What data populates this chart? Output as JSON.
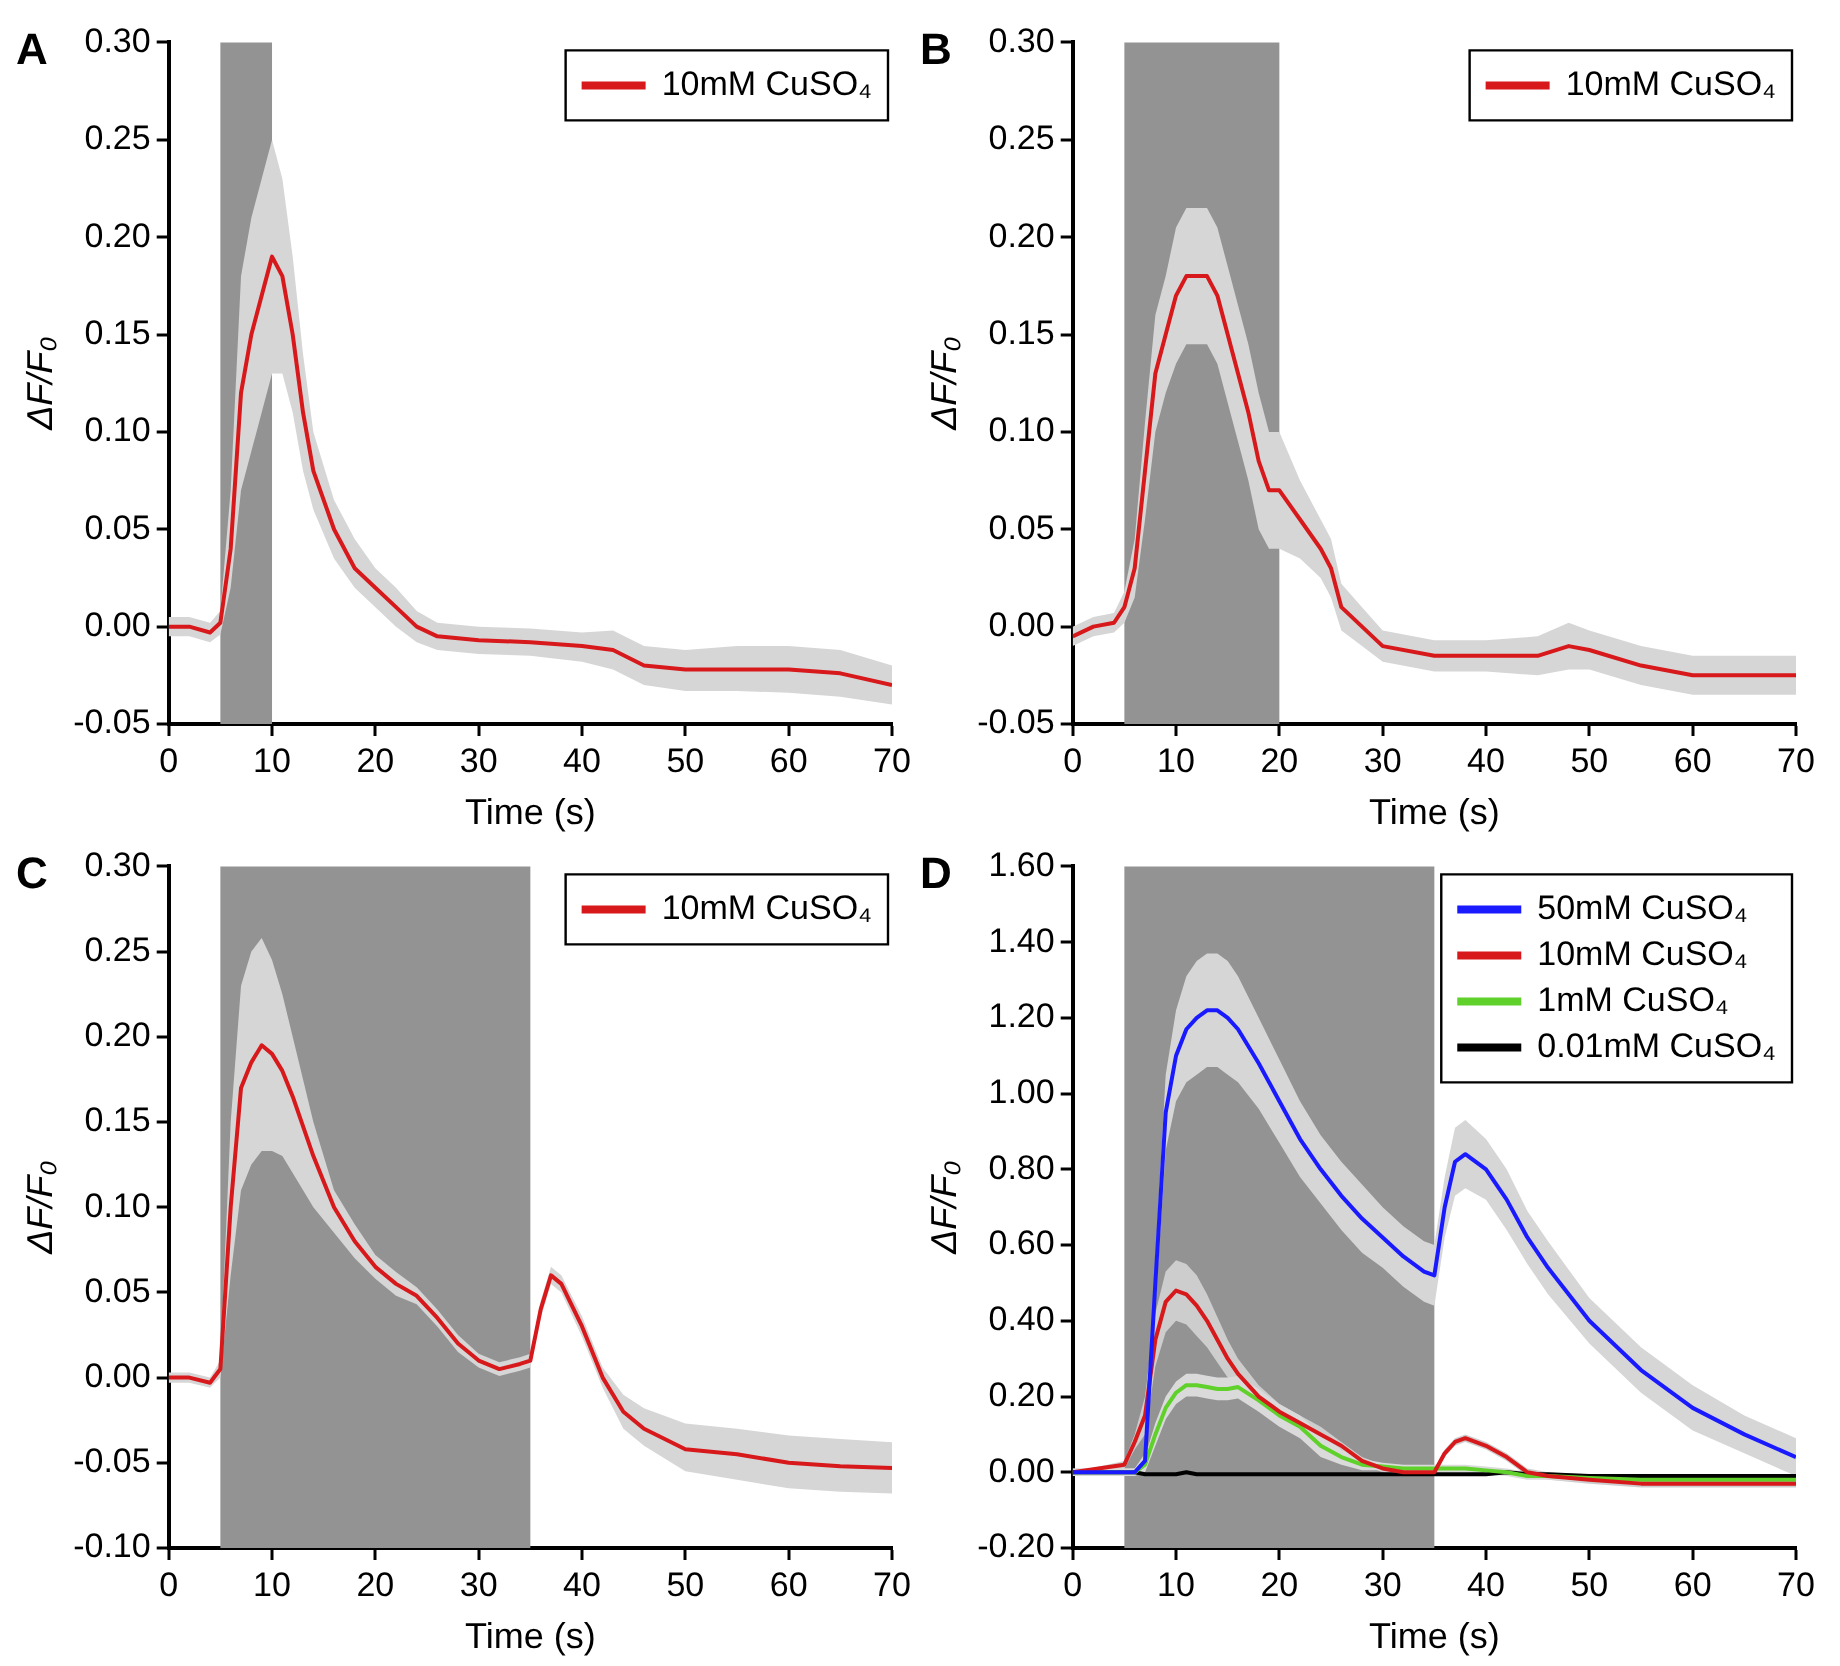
{
  "chart_data": [
    {
      "type": "line",
      "title": "A",
      "xlabel": "Time (s)",
      "ylabel": "ΔF/F₀",
      "legend": "top right",
      "x": [
        0,
        2,
        4,
        5,
        6,
        7,
        8,
        9,
        10,
        11,
        12,
        13,
        14,
        16,
        18,
        20,
        22,
        24,
        26,
        30,
        35,
        40,
        43,
        46,
        50,
        55,
        60,
        65,
        70
      ],
      "series": [
        {
          "name": "10mM CuSO₄",
          "color": "#d7191c",
          "values": [
            0,
            0,
            -0.003,
            0.002,
            0.04,
            0.12,
            0.15,
            0.17,
            0.19,
            0.18,
            0.15,
            0.11,
            0.08,
            0.05,
            0.03,
            0.02,
            0.01,
            0,
            -0.005,
            -0.007,
            -0.008,
            -0.01,
            -0.012,
            -0.02,
            -0.022,
            -0.022,
            -0.022,
            -0.024,
            -0.03
          ],
          "upper": [
            0.005,
            0.005,
            0.002,
            0.008,
            0.07,
            0.18,
            0.21,
            0.23,
            0.25,
            0.23,
            0.19,
            0.14,
            0.1,
            0.065,
            0.045,
            0.03,
            0.02,
            0.008,
            0.002,
            0.0,
            -0.001,
            -0.003,
            -0.002,
            -0.01,
            -0.012,
            -0.01,
            -0.01,
            -0.012,
            -0.02
          ],
          "lower": [
            -0.005,
            -0.005,
            -0.008,
            -0.004,
            0.02,
            0.07,
            0.09,
            0.11,
            0.13,
            0.13,
            0.11,
            0.08,
            0.06,
            0.035,
            0.02,
            0.01,
            0.0,
            -0.008,
            -0.012,
            -0.014,
            -0.015,
            -0.018,
            -0.022,
            -0.03,
            -0.033,
            -0.033,
            -0.034,
            -0.036,
            -0.04
          ]
        }
      ],
      "bands": [
        {
          "axis": "x",
          "from": 5,
          "to": 10,
          "color": "#939393"
        }
      ],
      "xlim": [
        0,
        70
      ],
      "xticks": [
        0,
        10,
        20,
        30,
        40,
        50,
        60,
        70
      ],
      "ylim": [
        -0.05,
        0.3
      ],
      "yticks": [
        {
          "value": -0.05,
          "label": "-0.05"
        },
        {
          "value": 0,
          "label": "0.00"
        },
        {
          "value": 0.05,
          "label": "0.05"
        },
        {
          "value": 0.1,
          "label": "0.10"
        },
        {
          "value": 0.15,
          "label": "0.15"
        },
        {
          "value": 0.2,
          "label": "0.20"
        },
        {
          "value": 0.25,
          "label": "0.25"
        },
        {
          "value": 0.3,
          "label": "0.30"
        }
      ]
    },
    {
      "type": "line",
      "title": "B",
      "xlabel": "Time (s)",
      "ylabel": "ΔF/F₀",
      "legend": "top right",
      "x": [
        0,
        2,
        4,
        5,
        6,
        7,
        8,
        9,
        10,
        11,
        12,
        13,
        14,
        15,
        16,
        17,
        18,
        19,
        20,
        22,
        24,
        25,
        26,
        28,
        30,
        35,
        40,
        45,
        48,
        50,
        55,
        60,
        65,
        70
      ],
      "series": [
        {
          "name": "10mM CuSO₄",
          "color": "#d7191c",
          "values": [
            -0.005,
            0,
            0.002,
            0.01,
            0.03,
            0.08,
            0.13,
            0.15,
            0.17,
            0.18,
            0.18,
            0.18,
            0.17,
            0.15,
            0.13,
            0.11,
            0.085,
            0.07,
            0.07,
            0.055,
            0.04,
            0.03,
            0.01,
            0.0,
            -0.01,
            -0.015,
            -0.015,
            -0.015,
            -0.01,
            -0.012,
            -0.02,
            -0.025,
            -0.025,
            -0.025
          ],
          "upper": [
            0.0,
            0.005,
            0.007,
            0.018,
            0.045,
            0.105,
            0.16,
            0.18,
            0.205,
            0.215,
            0.215,
            0.215,
            0.205,
            0.185,
            0.165,
            0.145,
            0.12,
            0.1,
            0.1,
            0.075,
            0.055,
            0.045,
            0.022,
            0.01,
            -0.002,
            -0.007,
            -0.007,
            -0.005,
            0.002,
            -0.002,
            -0.01,
            -0.015,
            -0.015,
            -0.015
          ],
          "lower": [
            -0.01,
            -0.005,
            -0.003,
            0.002,
            0.015,
            0.055,
            0.1,
            0.12,
            0.135,
            0.145,
            0.145,
            0.145,
            0.135,
            0.115,
            0.095,
            0.075,
            0.05,
            0.04,
            0.04,
            0.035,
            0.025,
            0.015,
            -0.002,
            -0.01,
            -0.018,
            -0.023,
            -0.023,
            -0.025,
            -0.022,
            -0.022,
            -0.03,
            -0.035,
            -0.035,
            -0.035
          ]
        }
      ],
      "bands": [
        {
          "axis": "x",
          "from": 5,
          "to": 20,
          "color": "#939393"
        }
      ],
      "xlim": [
        0,
        70
      ],
      "xticks": [
        0,
        10,
        20,
        30,
        40,
        50,
        60,
        70
      ],
      "ylim": [
        -0.05,
        0.3
      ],
      "yticks": [
        {
          "value": -0.05,
          "label": "-0.05"
        },
        {
          "value": 0,
          "label": "0.00"
        },
        {
          "value": 0.05,
          "label": "0.05"
        },
        {
          "value": 0.1,
          "label": "0.10"
        },
        {
          "value": 0.15,
          "label": "0.15"
        },
        {
          "value": 0.2,
          "label": "0.20"
        },
        {
          "value": 0.25,
          "label": "0.25"
        },
        {
          "value": 0.3,
          "label": "0.30"
        }
      ]
    },
    {
      "type": "line",
      "title": "C",
      "xlabel": "Time (s)",
      "ylabel": "ΔF/F₀",
      "legend": "top right",
      "x": [
        0,
        2,
        4,
        5,
        6,
        7,
        8,
        9,
        10,
        11,
        12,
        14,
        16,
        18,
        20,
        22,
        24,
        26,
        28,
        30,
        32,
        34,
        35,
        36,
        37,
        38,
        40,
        42,
        44,
        46,
        50,
        55,
        60,
        65,
        70
      ],
      "series": [
        {
          "name": "10mM CuSO₄",
          "color": "#d7191c",
          "values": [
            0,
            0,
            -0.003,
            0.005,
            0.1,
            0.17,
            0.185,
            0.195,
            0.19,
            0.18,
            0.165,
            0.13,
            0.1,
            0.08,
            0.065,
            0.055,
            0.048,
            0.035,
            0.02,
            0.01,
            0.005,
            0.008,
            0.01,
            0.04,
            0.06,
            0.055,
            0.03,
            0.0,
            -0.02,
            -0.03,
            -0.042,
            -0.045,
            -0.05,
            -0.052,
            -0.053
          ],
          "upper": [
            0.003,
            0.003,
            0.0,
            0.01,
            0.15,
            0.23,
            0.25,
            0.258,
            0.245,
            0.225,
            0.2,
            0.15,
            0.11,
            0.09,
            0.072,
            0.062,
            0.053,
            0.04,
            0.025,
            0.014,
            0.009,
            0.012,
            0.014,
            0.045,
            0.065,
            0.06,
            0.036,
            0.006,
            -0.01,
            -0.018,
            -0.027,
            -0.03,
            -0.034,
            -0.036,
            -0.038
          ],
          "lower": [
            -0.003,
            -0.003,
            -0.006,
            0.0,
            0.06,
            0.11,
            0.125,
            0.133,
            0.133,
            0.13,
            0.12,
            0.1,
            0.085,
            0.07,
            0.058,
            0.048,
            0.043,
            0.03,
            0.015,
            0.006,
            0.001,
            0.004,
            0.006,
            0.035,
            0.055,
            0.05,
            0.024,
            -0.006,
            -0.03,
            -0.04,
            -0.055,
            -0.06,
            -0.065,
            -0.067,
            -0.068
          ]
        }
      ],
      "bands": [
        {
          "axis": "x",
          "from": 5,
          "to": 35,
          "color": "#939393"
        }
      ],
      "xlim": [
        0,
        70
      ],
      "xticks": [
        0,
        10,
        20,
        30,
        40,
        50,
        60,
        70
      ],
      "ylim": [
        -0.1,
        0.3
      ],
      "yticks": [
        {
          "value": -0.1,
          "label": "-0.10"
        },
        {
          "value": -0.05,
          "label": "-0.05"
        },
        {
          "value": 0,
          "label": "0.00"
        },
        {
          "value": 0.05,
          "label": "0.05"
        },
        {
          "value": 0.1,
          "label": "0.10"
        },
        {
          "value": 0.15,
          "label": "0.15"
        },
        {
          "value": 0.2,
          "label": "0.20"
        },
        {
          "value": 0.25,
          "label": "0.25"
        },
        {
          "value": 0.3,
          "label": "0.30"
        }
      ]
    },
    {
      "type": "line",
      "title": "D",
      "xlabel": "Time (s)",
      "ylabel": "ΔF/F₀",
      "legend": "top right",
      "x": [
        0,
        5,
        6,
        7,
        8,
        9,
        10,
        11,
        12,
        13,
        14,
        15,
        16,
        18,
        20,
        22,
        24,
        26,
        28,
        30,
        32,
        34,
        35,
        36,
        37,
        38,
        40,
        42,
        44,
        46,
        50,
        55,
        60,
        65,
        70
      ],
      "series": [
        {
          "name": "50mM CuSO₄",
          "color": "#1a1aff",
          "values": [
            0,
            0,
            0,
            0.03,
            0.5,
            0.95,
            1.1,
            1.17,
            1.2,
            1.22,
            1.22,
            1.2,
            1.17,
            1.08,
            0.98,
            0.88,
            0.8,
            0.73,
            0.67,
            0.62,
            0.57,
            0.53,
            0.52,
            0.7,
            0.82,
            0.84,
            0.8,
            0.72,
            0.62,
            0.54,
            0.4,
            0.27,
            0.17,
            0.1,
            0.04
          ],
          "upper": [
            0.01,
            0.01,
            0.01,
            0.05,
            0.56,
            1.05,
            1.22,
            1.31,
            1.35,
            1.37,
            1.37,
            1.35,
            1.31,
            1.2,
            1.09,
            0.98,
            0.89,
            0.82,
            0.76,
            0.7,
            0.65,
            0.61,
            0.6,
            0.78,
            0.91,
            0.93,
            0.88,
            0.8,
            0.69,
            0.61,
            0.46,
            0.33,
            0.23,
            0.15,
            0.09
          ],
          "lower": [
            -0.01,
            -0.01,
            -0.01,
            0.01,
            0.44,
            0.85,
            0.98,
            1.03,
            1.05,
            1.07,
            1.07,
            1.05,
            1.03,
            0.96,
            0.87,
            0.78,
            0.71,
            0.64,
            0.58,
            0.54,
            0.49,
            0.45,
            0.44,
            0.62,
            0.73,
            0.75,
            0.72,
            0.64,
            0.55,
            0.47,
            0.34,
            0.21,
            0.11,
            0.05,
            -0.01
          ]
        },
        {
          "name": "10mM CuSO₄",
          "color": "#d7191c",
          "values": [
            0,
            0.02,
            0.08,
            0.15,
            0.35,
            0.45,
            0.48,
            0.47,
            0.44,
            0.4,
            0.35,
            0.3,
            0.26,
            0.2,
            0.16,
            0.13,
            0.1,
            0.07,
            0.03,
            0.01,
            0.0,
            0.0,
            0.0,
            0.05,
            0.08,
            0.09,
            0.07,
            0.04,
            0.0,
            -0.01,
            -0.02,
            -0.03,
            -0.03,
            -0.03,
            -0.03
          ],
          "upper": [
            0,
            0.03,
            0.1,
            0.2,
            0.42,
            0.53,
            0.56,
            0.55,
            0.52,
            0.47,
            0.41,
            0.35,
            0.3,
            0.23,
            0.18,
            0.15,
            0.12,
            0.08,
            0.04,
            0.02,
            0.01,
            0.01,
            0.01,
            0.06,
            0.09,
            0.1,
            0.08,
            0.05,
            0.01,
            0.0,
            -0.01,
            -0.02,
            -0.02,
            -0.02,
            -0.02
          ],
          "lower": [
            0,
            0.01,
            0.06,
            0.1,
            0.28,
            0.37,
            0.4,
            0.39,
            0.36,
            0.33,
            0.29,
            0.25,
            0.22,
            0.17,
            0.14,
            0.11,
            0.08,
            0.06,
            0.02,
            0.0,
            -0.01,
            -0.01,
            -0.01,
            0.04,
            0.07,
            0.08,
            0.06,
            0.03,
            -0.01,
            -0.02,
            -0.03,
            -0.04,
            -0.04,
            -0.04,
            -0.04
          ]
        },
        {
          "name": "1mM CuSO₄",
          "color": "#5fd12a",
          "values": [
            0,
            0,
            0,
            0.02,
            0.1,
            0.17,
            0.21,
            0.23,
            0.23,
            0.225,
            0.22,
            0.22,
            0.225,
            0.19,
            0.15,
            0.12,
            0.07,
            0.04,
            0.02,
            0.015,
            0.01,
            0.01,
            0.01,
            0.01,
            0.01,
            0.01,
            0.005,
            0.0,
            -0.01,
            -0.01,
            -0.015,
            -0.02,
            -0.02,
            -0.02,
            -0.02
          ],
          "upper": [
            0.01,
            0.01,
            0.01,
            0.04,
            0.13,
            0.2,
            0.24,
            0.26,
            0.26,
            0.255,
            0.25,
            0.25,
            0.255,
            0.22,
            0.18,
            0.15,
            0.1,
            0.06,
            0.035,
            0.025,
            0.02,
            0.02,
            0.02,
            0.02,
            0.02,
            0.02,
            0.015,
            0.01,
            0.0,
            0.0,
            -0.005,
            -0.01,
            -0.01,
            -0.01,
            -0.01
          ],
          "lower": [
            -0.01,
            -0.01,
            -0.01,
            0.0,
            0.07,
            0.14,
            0.18,
            0.2,
            0.2,
            0.195,
            0.19,
            0.19,
            0.195,
            0.16,
            0.12,
            0.09,
            0.04,
            0.02,
            0.005,
            0.005,
            0.0,
            0.0,
            0.0,
            0.0,
            0.0,
            0.0,
            -0.005,
            -0.01,
            -0.02,
            -0.02,
            -0.025,
            -0.03,
            -0.03,
            -0.03,
            -0.03
          ]
        },
        {
          "name": "0.01mM CuSO₄",
          "color": "#000000",
          "values": [
            0,
            0,
            0,
            -0.005,
            -0.005,
            -0.005,
            -0.005,
            0,
            -0.005,
            -0.005,
            -0.005,
            -0.005,
            -0.005,
            -0.005,
            -0.005,
            -0.005,
            -0.005,
            -0.005,
            -0.005,
            -0.005,
            -0.005,
            -0.005,
            -0.005,
            -0.005,
            -0.005,
            -0.005,
            -0.005,
            0,
            -0.005,
            -0.005,
            -0.01,
            -0.01,
            -0.01,
            -0.01,
            -0.01
          ]
        }
      ],
      "bands": [
        {
          "axis": "x",
          "from": 5,
          "to": 35,
          "color": "#939393"
        }
      ],
      "xlim": [
        0,
        70
      ],
      "xticks": [
        0,
        10,
        20,
        30,
        40,
        50,
        60,
        70
      ],
      "ylim": [
        -0.2,
        1.6
      ],
      "yticks": [
        {
          "value": -0.2,
          "label": "-0.20"
        },
        {
          "value": 0,
          "label": "0.00"
        },
        {
          "value": 0.2,
          "label": "0.20"
        },
        {
          "value": 0.4,
          "label": "0.40"
        },
        {
          "value": 0.6,
          "label": "0.60"
        },
        {
          "value": 0.8,
          "label": "0.80"
        },
        {
          "value": 1,
          "label": "1.00"
        },
        {
          "value": 1.2,
          "label": "1.20"
        },
        {
          "value": 1.4,
          "label": "1.40"
        },
        {
          "value": 1.6,
          "label": "1.60"
        }
      ]
    }
  ]
}
